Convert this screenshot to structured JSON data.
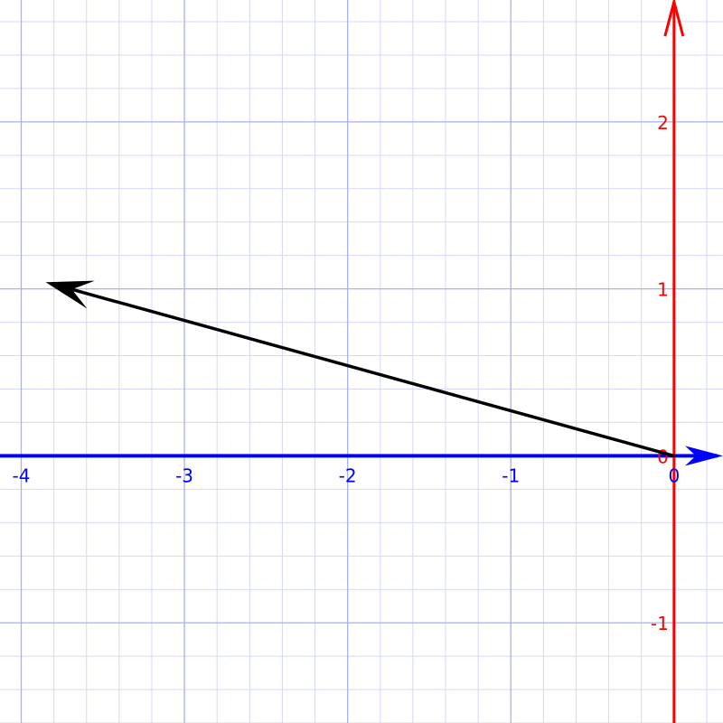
{
  "colors": {
    "background": "#ffffff",
    "grid_major": "#aab0f0",
    "grid_minor": "#d4d7f8",
    "x_axis": "#0000ff",
    "y_axis": "#ff0000",
    "vector": "#000000"
  },
  "axes": {
    "x_range": [
      -4.13,
      0.3
    ],
    "y_range": [
      -1.6,
      2.73
    ],
    "x_ticks": [
      {
        "value": -4,
        "label": "-4"
      },
      {
        "value": -3,
        "label": "-3"
      },
      {
        "value": -2,
        "label": "-2"
      },
      {
        "value": -1,
        "label": "-1"
      },
      {
        "value": 0,
        "label": "0"
      }
    ],
    "y_ticks": [
      {
        "value": 2,
        "label": "2"
      },
      {
        "value": 1,
        "label": "1"
      },
      {
        "value": 0,
        "label": "0"
      },
      {
        "value": -1,
        "label": "-1"
      }
    ],
    "minor_grid_step": 0.2,
    "grid": true
  },
  "vector": {
    "from": [
      0,
      0
    ],
    "to": [
      -3.85,
      1.04
    ]
  }
}
